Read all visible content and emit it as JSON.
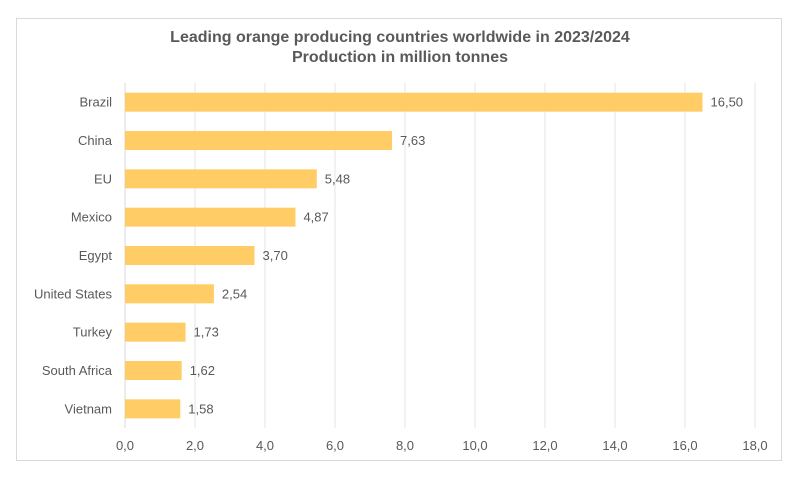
{
  "chart_data": {
    "type": "bar",
    "orientation": "horizontal",
    "title": "Leading orange producing countries worldwide in 2023/2024",
    "subtitle": "Production in million tonnes",
    "categories": [
      "Brazil",
      "China",
      "EU",
      "Mexico",
      "Egypt",
      "United States",
      "Turkey",
      "South Africa",
      "Vietnam"
    ],
    "values": [
      16.5,
      7.63,
      5.48,
      4.87,
      3.7,
      2.54,
      1.73,
      1.62,
      1.58
    ],
    "data_labels": [
      "16,50",
      "7,63",
      "5,48",
      "4,87",
      "3,70",
      "2,54",
      "1,73",
      "1,62",
      "1,58"
    ],
    "xlim": [
      0,
      18
    ],
    "x_ticks": [
      0,
      2,
      4,
      6,
      8,
      10,
      12,
      14,
      16,
      18
    ],
    "x_tick_labels": [
      "0,0",
      "2,0",
      "4,0",
      "6,0",
      "8,0",
      "10,0",
      "12,0",
      "14,0",
      "16,0",
      "18,0"
    ],
    "xlabel": "",
    "ylabel": "",
    "grid": "vertical",
    "legend": "none",
    "bar_color": "#FFCC66",
    "text_color": "#595959",
    "grid_color": "#e6e6e6"
  }
}
